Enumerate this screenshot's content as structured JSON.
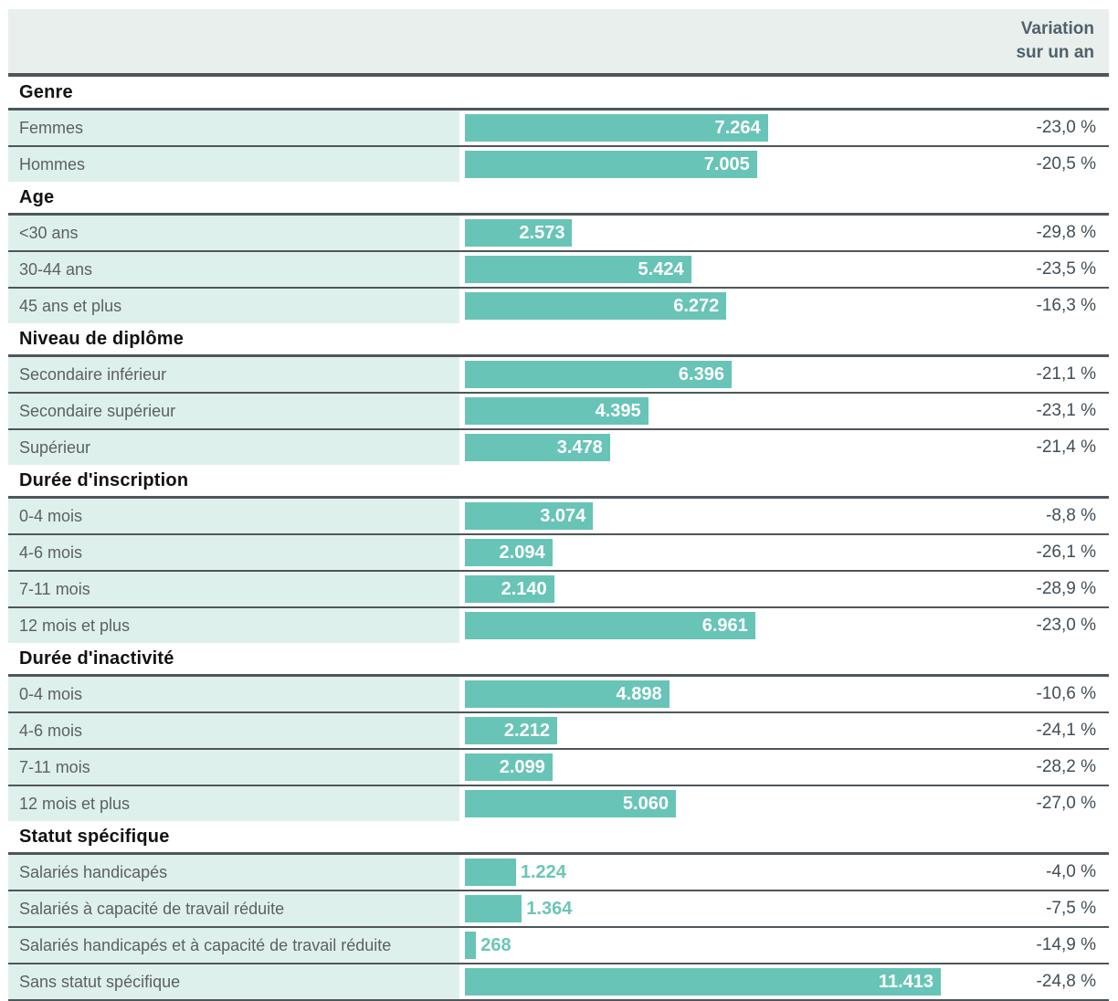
{
  "colors": {
    "bar": "#68c4b6",
    "bar_label_outside": "#6cc5b7",
    "cell_bg": "#def0ec",
    "header_bg": "#e8efed",
    "border": "#4f565b",
    "header_text": "#50616b",
    "label_text": "#5c6063",
    "variation_text": "#414e57"
  },
  "table": {
    "header": {
      "variation_line1": "Variation",
      "variation_line2": "sur un an"
    }
  },
  "chart_data": {
    "type": "bar",
    "title": "",
    "xlabel": "",
    "ylabel": "",
    "orientation": "horizontal",
    "value_axis_max": 11413,
    "legend": [],
    "columns": [
      "category",
      "value",
      "variation_sur_un_an"
    ],
    "sections": [
      {
        "title": "Genre",
        "rows": [
          {
            "label": "Femmes",
            "value": 7264,
            "value_display": "7.264",
            "variation": "-23,0 %"
          },
          {
            "label": "Hommes",
            "value": 7005,
            "value_display": "7.005",
            "variation": "-20,5 %"
          }
        ]
      },
      {
        "title": "Age",
        "rows": [
          {
            "label": "<30 ans",
            "value": 2573,
            "value_display": "2.573",
            "variation": "-29,8 %"
          },
          {
            "label": "30-44 ans",
            "value": 5424,
            "value_display": "5.424",
            "variation": "-23,5 %"
          },
          {
            "label": "45 ans et plus",
            "value": 6272,
            "value_display": "6.272",
            "variation": "-16,3 %"
          }
        ]
      },
      {
        "title": "Niveau de diplôme",
        "rows": [
          {
            "label": "Secondaire inférieur",
            "value": 6396,
            "value_display": "6.396",
            "variation": "-21,1 %"
          },
          {
            "label": "Secondaire supérieur",
            "value": 4395,
            "value_display": "4.395",
            "variation": "-23,1 %"
          },
          {
            "label": "Supérieur",
            "value": 3478,
            "value_display": "3.478",
            "variation": "-21,4 %"
          }
        ]
      },
      {
        "title": "Durée d'inscription",
        "rows": [
          {
            "label": "0-4 mois",
            "value": 3074,
            "value_display": "3.074",
            "variation": "-8,8 %"
          },
          {
            "label": "4-6 mois",
            "value": 2094,
            "value_display": "2.094",
            "variation": "-26,1 %"
          },
          {
            "label": "7-11 mois",
            "value": 2140,
            "value_display": "2.140",
            "variation": "-28,9 %"
          },
          {
            "label": "12 mois et plus",
            "value": 6961,
            "value_display": "6.961",
            "variation": "-23,0 %"
          }
        ]
      },
      {
        "title": "Durée d'inactivité",
        "rows": [
          {
            "label": "0-4 mois",
            "value": 4898,
            "value_display": "4.898",
            "variation": "-10,6 %"
          },
          {
            "label": "4-6 mois",
            "value": 2212,
            "value_display": "2.212",
            "variation": "-24,1 %"
          },
          {
            "label": "7-11 mois",
            "value": 2099,
            "value_display": "2.099",
            "variation": "-28,2 %"
          },
          {
            "label": "12 mois et plus",
            "value": 5060,
            "value_display": "5.060",
            "variation": "-27,0 %"
          }
        ]
      },
      {
        "title": "Statut spécifique",
        "rows": [
          {
            "label": "Salariés handicapés",
            "value": 1224,
            "value_display": "1.224",
            "variation": "-4,0 %"
          },
          {
            "label": "Salariés à capacité de travail réduite",
            "value": 1364,
            "value_display": "1.364",
            "variation": "-7,5 %"
          },
          {
            "label": "Salariés handicapés et à capacité de travail réduite",
            "value": 268,
            "value_display": "268",
            "variation": "-14,9 %"
          },
          {
            "label": "Sans statut spécifique",
            "value": 11413,
            "value_display": "11.413",
            "variation": "-24,8 %"
          }
        ]
      }
    ]
  }
}
